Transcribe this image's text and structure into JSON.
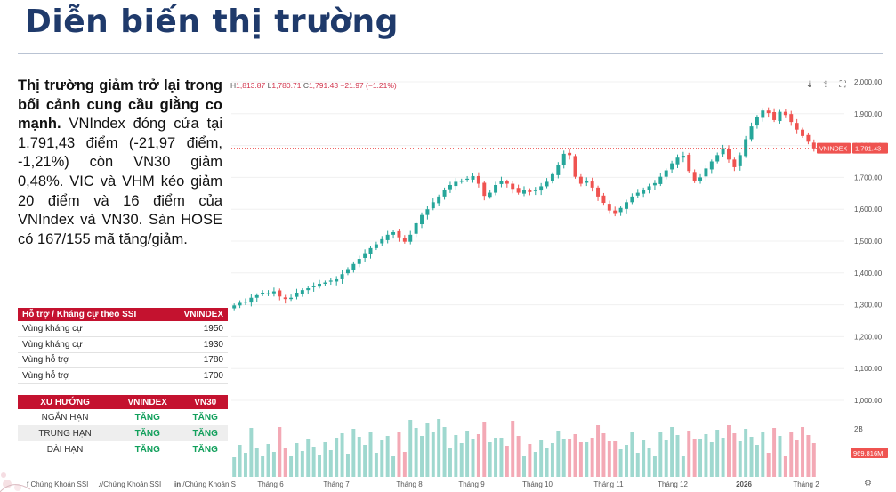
{
  "slide": {
    "title": "Diễn biến thị trường"
  },
  "summary": {
    "bold": "Thị trường giảm trở lại trong bối cảnh cung cầu giằng co mạnh.",
    "body": " VNIndex đóng cửa tại 1.791,43 điểm (-21,97 điểm, -1,21%) còn VN30 giảm 0,48%. VIC và VHM kéo giảm 20 điểm và 16 điểm của VNIndex và VN30. Sàn HOSE có 167/155 mã tăng/giảm."
  },
  "support_table": {
    "headers": [
      "Hỗ trợ / Kháng cự theo SSI",
      "VNINDEX"
    ],
    "rows": [
      {
        "label": "Vùng kháng cự",
        "value": "1950"
      },
      {
        "label": "Vùng kháng cự",
        "value": "1930"
      },
      {
        "label": "Vùng hỗ trợ",
        "value": "1780"
      },
      {
        "label": "Vùng hỗ trợ",
        "value": "1700"
      }
    ]
  },
  "trend_table": {
    "headers": [
      "XU HƯỚNG",
      "VNINDEX",
      "VN30"
    ],
    "rows": [
      {
        "label": "NGẮN HẠN",
        "vnindex": "TĂNG",
        "vn30": "TĂNG"
      },
      {
        "label": "TRUNG HẠN",
        "vnindex": "TĂNG",
        "vn30": "TĂNG"
      },
      {
        "label": "DÀI HẠN",
        "vnindex": "TĂNG",
        "vn30": "TĂNG"
      }
    ]
  },
  "footer": {
    "items": [
      "Chứng Khoán SSI",
      "/Chứng Khoán SSI",
      "/Chứng Khoán S"
    ]
  },
  "chart_header": {
    "h_label": "H",
    "h_value": "1,813.87",
    "l_label": "L",
    "l_value": "1,780.71",
    "c_label": "C",
    "c_value": "1,791.43",
    "change": "−21.97 (−1.21%)"
  },
  "chart_data": {
    "type": "candlestick",
    "x_labels": [
      "Tháng 6",
      "Tháng 7",
      "Tháng 8",
      "Tháng 9",
      "Tháng 10",
      "Tháng 11",
      "Tháng 12",
      "2026",
      "Tháng 2"
    ],
    "y_ticks": [
      "2,000.00",
      "1,900.00",
      "1,800.00",
      "1,700.00",
      "1,600.00",
      "1,500.00",
      "1,400.00",
      "1,300.00",
      "1,200.00",
      "1,100.00",
      "1,000.00"
    ],
    "ylim": [
      1000,
      2000
    ],
    "last_price_label": "VNINDEX",
    "last_price": "1,791.43",
    "last_value": 1791.43,
    "volume_tick": "2B",
    "volume_last": "969.816M",
    "colors": {
      "up": "#26a69a",
      "down": "#ef5350",
      "volume_up": "#9fd8cf",
      "volume_down": "#f3a9b5",
      "price_line": "#ef5350",
      "grid": "#f0f0f0"
    },
    "closes": [
      1298,
      1306,
      1310,
      1322,
      1330,
      1338,
      1336,
      1342,
      1326,
      1318,
      1322,
      1338,
      1346,
      1352,
      1360,
      1366,
      1370,
      1376,
      1380,
      1396,
      1412,
      1428,
      1444,
      1462,
      1478,
      1490,
      1506,
      1520,
      1528,
      1512,
      1498,
      1520,
      1556,
      1582,
      1600,
      1622,
      1640,
      1660,
      1676,
      1686,
      1690,
      1696,
      1704,
      1680,
      1642,
      1652,
      1676,
      1690,
      1680,
      1664,
      1652,
      1660,
      1654,
      1662,
      1672,
      1686,
      1710,
      1740,
      1774,
      1770,
      1702,
      1680,
      1690,
      1668,
      1640,
      1620,
      1596,
      1588,
      1604,
      1622,
      1640,
      1652,
      1662,
      1672,
      1682,
      1702,
      1722,
      1744,
      1762,
      1768,
      1720,
      1690,
      1700,
      1728,
      1750,
      1770,
      1792,
      1756,
      1732,
      1770,
      1820,
      1860,
      1890,
      1910,
      1902,
      1880,
      1906,
      1896,
      1874,
      1850,
      1830,
      1812,
      1791
    ]
  }
}
